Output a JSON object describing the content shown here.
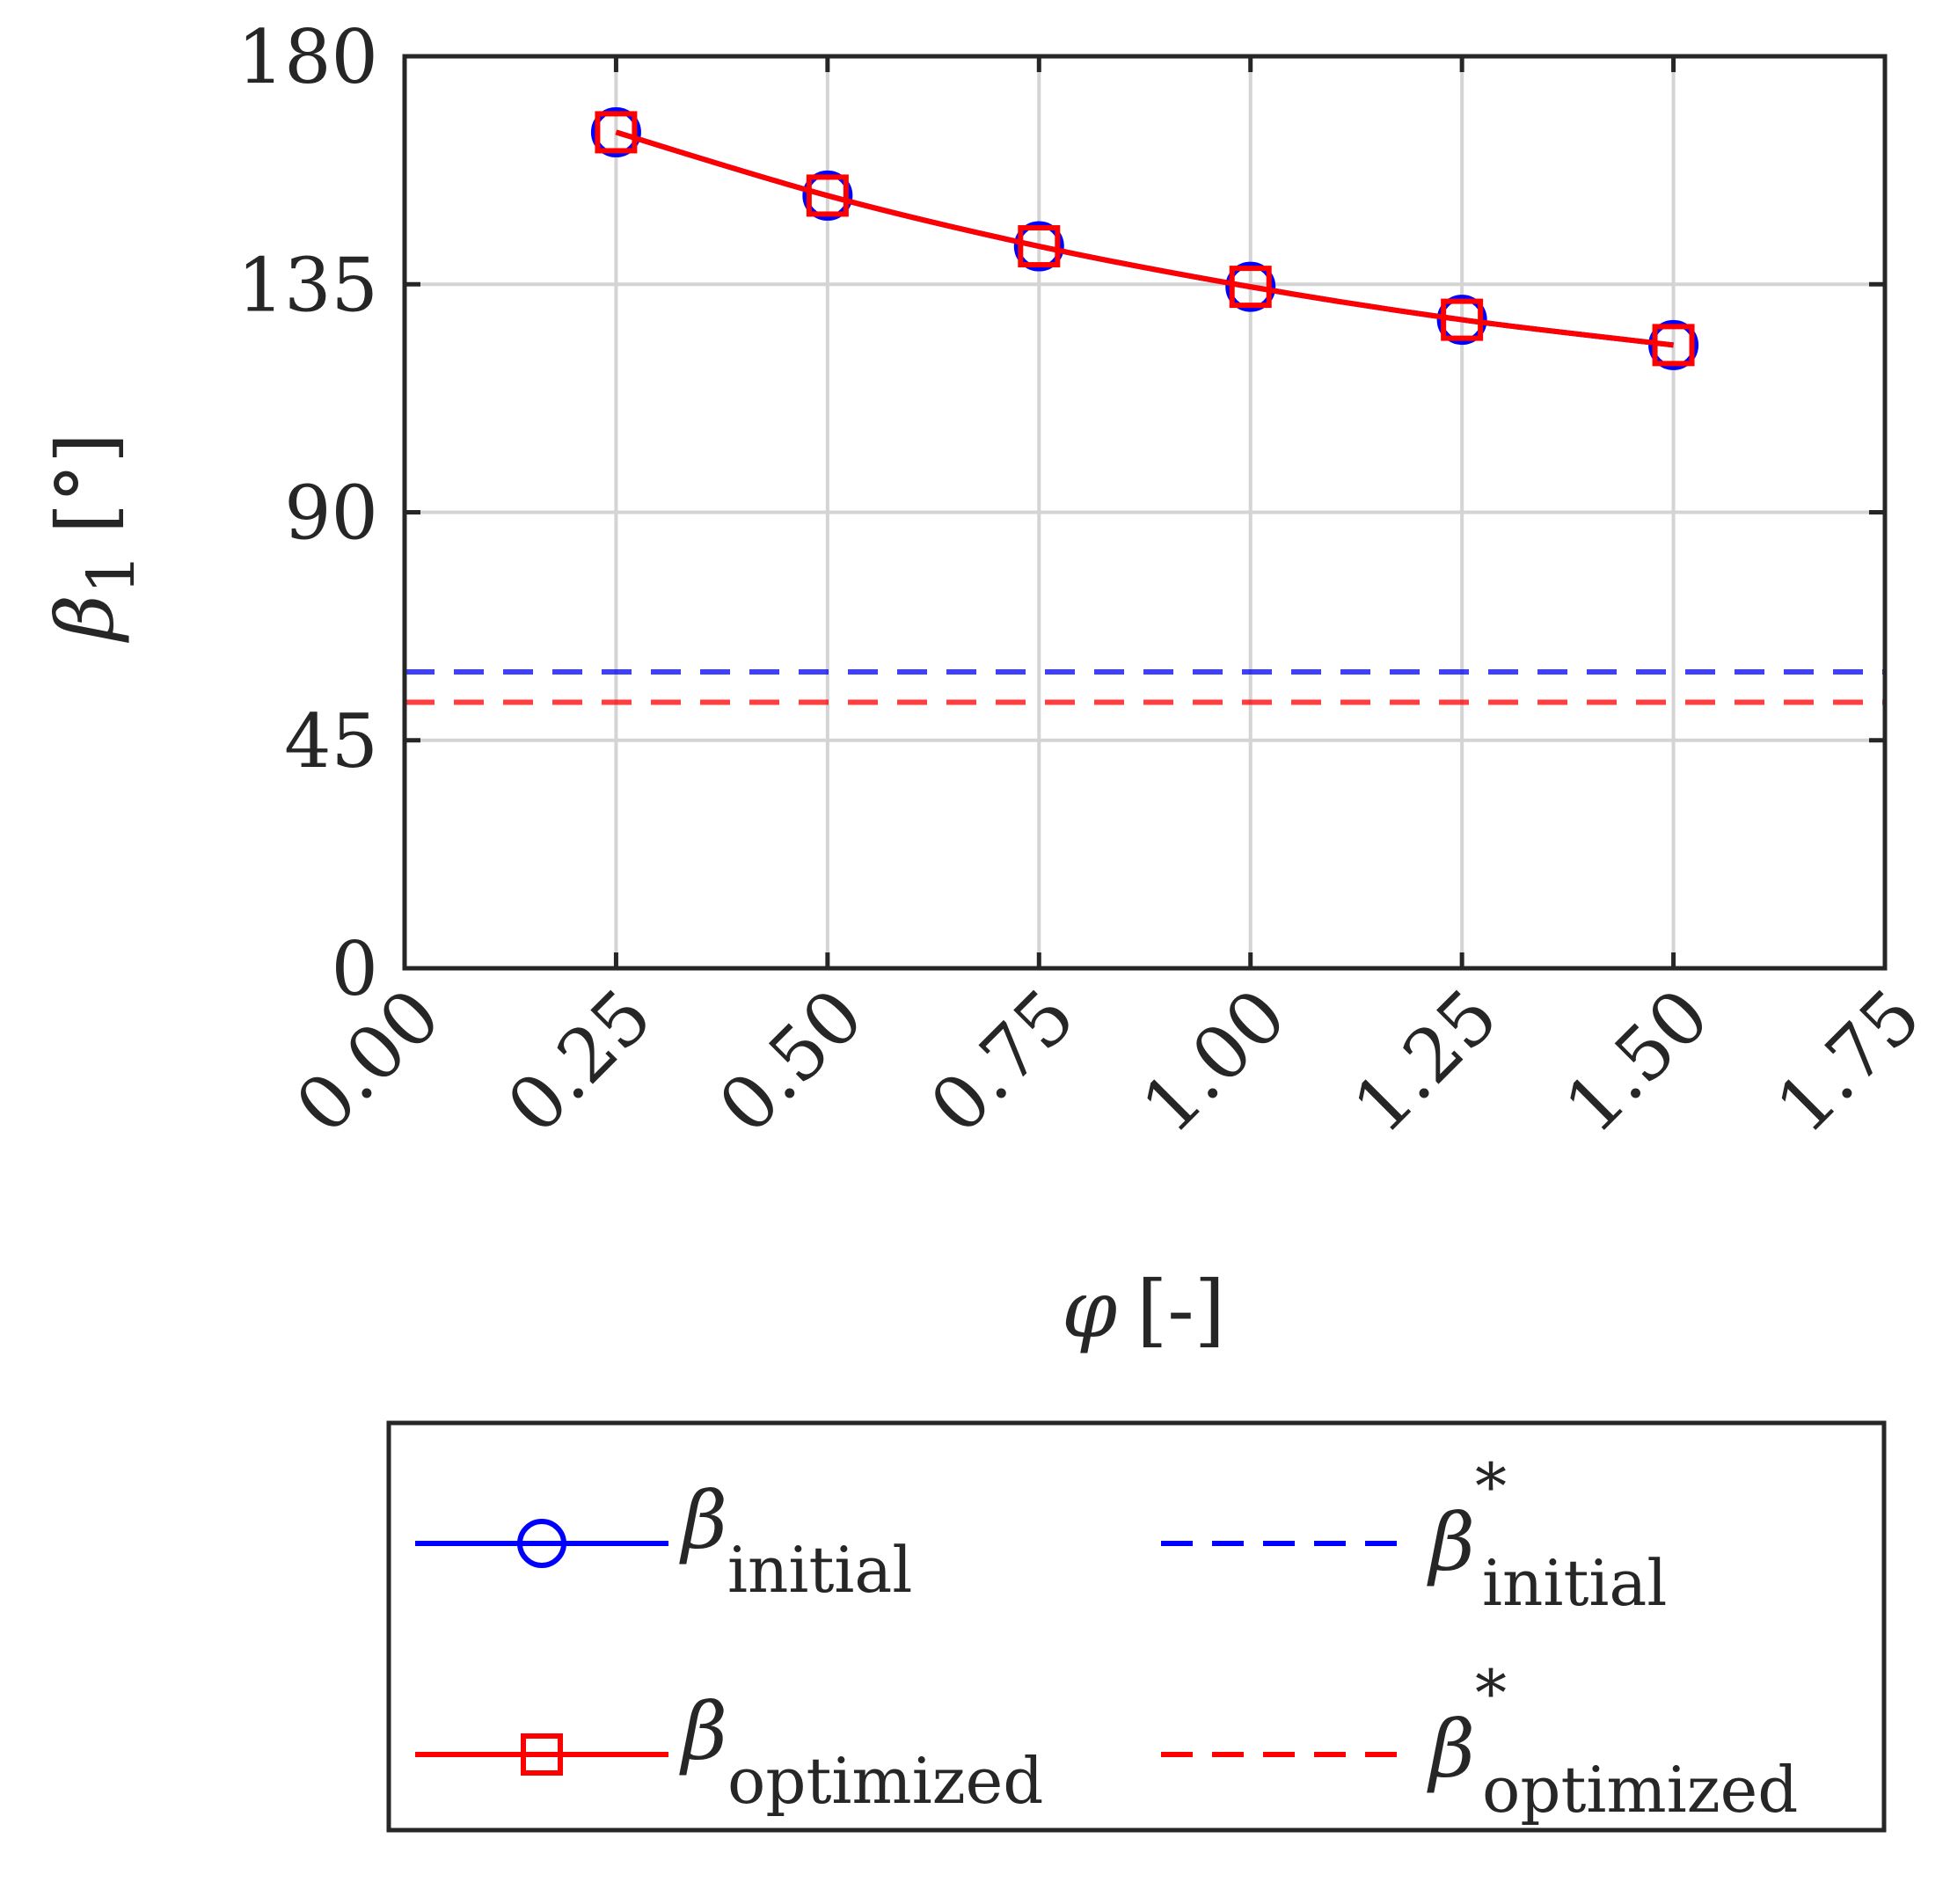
{
  "chart_data": {
    "type": "line",
    "x": [
      0.25,
      0.5,
      0.75,
      1.0,
      1.25,
      1.5
    ],
    "series": [
      {
        "name": "β_initial",
        "symbol": "β",
        "subscript": "initial",
        "superscript": "",
        "color": "#0000ff",
        "marker": "circle",
        "style": "solid",
        "values": [
          165,
          152.5,
          142.5,
          134.5,
          128,
          123
        ]
      },
      {
        "name": "β_optimized",
        "symbol": "β",
        "subscript": "optimized",
        "superscript": "",
        "color": "#ff0000",
        "marker": "square",
        "style": "solid",
        "values": [
          165,
          152.5,
          142.5,
          134.5,
          128,
          123
        ]
      },
      {
        "name": "β*_initial",
        "symbol": "β",
        "subscript": "initial",
        "superscript": "*",
        "color": "#0000ff",
        "marker": "none",
        "style": "dashed",
        "constant": 58.5
      },
      {
        "name": "β*_optimized",
        "symbol": "β",
        "subscript": "optimized",
        "superscript": "*",
        "color": "#ff0000",
        "marker": "none",
        "style": "dashed",
        "constant": 52.5
      }
    ],
    "xlim": [
      0,
      1.75
    ],
    "ylim": [
      0,
      180
    ],
    "xticks": [
      "0.00",
      "0.25",
      "0.50",
      "0.75",
      "1.00",
      "1.25",
      "1.50",
      "1.75"
    ],
    "xtick_values": [
      0,
      0.25,
      0.5,
      0.75,
      1.0,
      1.25,
      1.5,
      1.75
    ],
    "yticks": [
      "0",
      "45",
      "90",
      "135",
      "180"
    ],
    "ytick_values": [
      0,
      45,
      90,
      135,
      180
    ],
    "xlabel": {
      "symbol": "φ",
      "unit": "[-]"
    },
    "ylabel": {
      "symbol": "β",
      "subscript": "1",
      "unit": "[°]"
    },
    "grid": true,
    "legend_position": "below"
  }
}
